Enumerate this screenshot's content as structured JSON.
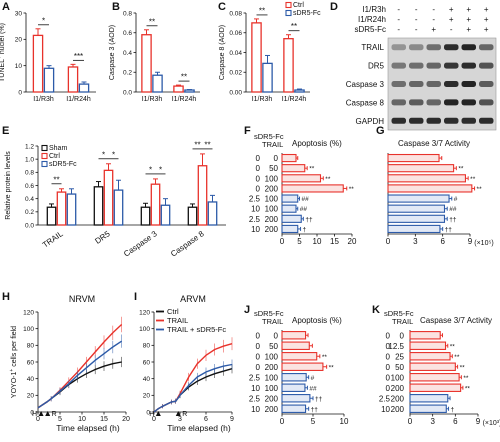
{
  "colors": {
    "sham": "#111111",
    "ctrl": "#e8322b",
    "sdr5": "#2c5aa8",
    "ctrl_fill": "#fbe3e1",
    "sdr5_fill": "#e2e9f6",
    "blot_bg": "#d6d6d6",
    "band": "#1a1a1a"
  },
  "chart_data": [
    {
      "id": "A",
      "type": "bar",
      "panel_label": "A",
      "ylabel": "TUNEL",
      "ylabel_sup": "+",
      "ylabel_rest": " nuclei (%)",
      "categories": [
        "I1/R3h",
        "I1/R24h"
      ],
      "ylim": [
        0,
        30
      ],
      "yticks": [
        "0",
        "10",
        "20",
        "30"
      ],
      "series": [
        {
          "name": "Ctrl",
          "values": [
            21.5,
            9.5
          ],
          "err": [
            2.5,
            1
          ]
        },
        {
          "name": "sDR5-Fc",
          "values": [
            9,
            3
          ],
          "err": [
            1,
            0.8
          ]
        }
      ],
      "sig": [
        "*",
        "***"
      ]
    },
    {
      "id": "B",
      "type": "bar",
      "panel_label": "B",
      "ylabel": "Caspase 3 (AOD)",
      "categories": [
        "I1/R3h",
        "I1/R24h"
      ],
      "ylim": [
        0,
        0.8
      ],
      "yticks": [
        "0.0",
        "0.2",
        "0.4",
        "0.6",
        "0.8"
      ],
      "series": [
        {
          "name": "Ctrl",
          "values": [
            0.58,
            0.06
          ],
          "err": [
            0.05,
            0.01
          ]
        },
        {
          "name": "sDR5-Fc",
          "values": [
            0.17,
            0.02
          ],
          "err": [
            0.03,
            0.005
          ]
        }
      ],
      "sig": [
        "**",
        "**"
      ]
    },
    {
      "id": "C",
      "type": "bar",
      "panel_label": "C",
      "ylabel": "Caspase 8 (AOD)",
      "categories": [
        "I1/R3h",
        "I1/R24h"
      ],
      "ylim": [
        0,
        0.08
      ],
      "yticks": [
        "0.00",
        "0.02",
        "0.04",
        "0.06",
        "0.08"
      ],
      "series": [
        {
          "name": "Ctrl",
          "values": [
            0.07,
            0.054
          ],
          "err": [
            0.004,
            0.004
          ]
        },
        {
          "name": "sDR5-Fc",
          "values": [
            0.029,
            0.002
          ],
          "err": [
            0.008,
            0.001
          ]
        }
      ],
      "sig": [
        "**",
        "**"
      ],
      "legend": [
        "Ctrl",
        "sDR5-Fc"
      ]
    },
    {
      "id": "E",
      "type": "bar",
      "panel_label": "E",
      "ylabel": "Relative protein levels",
      "categories": [
        "TRAIL",
        "DR5",
        "Caspase 3",
        "Caspase 8"
      ],
      "ylim": [
        0,
        1.2
      ],
      "yticks": [
        "0.0",
        "0.2",
        "0.4",
        "0.6",
        "0.8",
        "1.0",
        "1.2"
      ],
      "series": [
        {
          "name": "Sham",
          "values": [
            0.27,
            0.58,
            0.27,
            0.27
          ],
          "err": [
            0.05,
            0.08,
            0.06,
            0.05
          ]
        },
        {
          "name": "Ctrl",
          "values": [
            0.5,
            0.83,
            0.62,
            0.9
          ],
          "err": [
            0.05,
            0.1,
            0.08,
            0.18
          ]
        },
        {
          "name": "sDR5-Fc",
          "values": [
            0.47,
            0.53,
            0.3,
            0.35
          ],
          "err": [
            0.08,
            0.15,
            0.1,
            0.1
          ]
        }
      ],
      "sig": [
        {
          "cat": 0,
          "a": 0,
          "b": 1,
          "t": "**"
        },
        {
          "cat": 1,
          "a": 0,
          "b": 1,
          "t": "*"
        },
        {
          "cat": 1,
          "a": 1,
          "b": 2,
          "t": "*"
        },
        {
          "cat": 2,
          "a": 0,
          "b": 1,
          "t": "*"
        },
        {
          "cat": 2,
          "a": 1,
          "b": 2,
          "t": "*"
        },
        {
          "cat": 3,
          "a": 0,
          "b": 1,
          "t": "**"
        },
        {
          "cat": 3,
          "a": 1,
          "b": 2,
          "t": "**"
        }
      ],
      "legend": [
        "Sham",
        "Ctrl",
        "sDR5-Fc"
      ]
    },
    {
      "id": "F",
      "type": "hbar",
      "panel_label": "F",
      "title": "Apoptosis (%)",
      "col_headers": [
        "sDR5-Fc",
        "TRAIL"
      ],
      "rows": [
        {
          "sdr5": "0",
          "trail": "0",
          "value": 4,
          "err": 0.5,
          "group": "ctrl",
          "sig": ""
        },
        {
          "sdr5": "0",
          "trail": "50",
          "value": 6.5,
          "err": 0.7,
          "group": "ctrl",
          "sig": "**"
        },
        {
          "sdr5": "0",
          "trail": "100",
          "value": 11,
          "err": 0.8,
          "group": "ctrl",
          "sig": "**"
        },
        {
          "sdr5": "0",
          "trail": "200",
          "value": 17.5,
          "err": 1,
          "group": "ctrl",
          "sig": "**"
        },
        {
          "sdr5": "2.5",
          "trail": "100",
          "value": 4.5,
          "err": 0.5,
          "group": "sdr5",
          "sig": "##"
        },
        {
          "sdr5": "10",
          "trail": "100",
          "value": 4,
          "err": 0.5,
          "group": "sdr5",
          "sig": "##"
        },
        {
          "sdr5": "2.5",
          "trail": "200",
          "value": 5.5,
          "err": 0.6,
          "group": "sdr5",
          "sig": "††"
        },
        {
          "sdr5": "10",
          "trail": "200",
          "value": 4.5,
          "err": 0.8,
          "group": "sdr5",
          "sig": "†"
        }
      ],
      "xlim": [
        0,
        20
      ],
      "xticks": [
        "0",
        "5",
        "10",
        "15",
        "20"
      ]
    },
    {
      "id": "G",
      "type": "hbar",
      "panel_label": "G",
      "title": "Caspase 3/7 Activity",
      "rows": [
        {
          "value": 5.6,
          "err": 0.3,
          "group": "ctrl",
          "sig": ""
        },
        {
          "value": 7.2,
          "err": 0.3,
          "group": "ctrl",
          "sig": "**"
        },
        {
          "value": 8.5,
          "err": 0.3,
          "group": "ctrl",
          "sig": "**"
        },
        {
          "value": 9.2,
          "err": 0.3,
          "group": "ctrl",
          "sig": "**"
        },
        {
          "value": 6.7,
          "err": 0.3,
          "group": "sdr5",
          "sig": "#"
        },
        {
          "value": 6.2,
          "err": 0.3,
          "group": "sdr5",
          "sig": "##"
        },
        {
          "value": 6.2,
          "err": 0.3,
          "group": "sdr5",
          "sig": "††"
        },
        {
          "value": 5.7,
          "err": 0.3,
          "group": "sdr5",
          "sig": "††"
        }
      ],
      "xlim": [
        0,
        9
      ],
      "xticks": [
        "0",
        "3",
        "6",
        "9"
      ],
      "xunit": "(×10⁵)"
    },
    {
      "id": "H",
      "type": "line",
      "panel_label": "H",
      "title": "NRVM",
      "ylabel": "YOYO-1",
      "ylabel_sup": "+",
      "ylabel_rest": " cells per field",
      "xlabel": "Time elapsed (h)",
      "xlim": [
        0,
        20
      ],
      "ylim": [
        0,
        120
      ],
      "xticks": [
        "0",
        "5",
        "10",
        "15",
        "20"
      ],
      "yticks": [
        "0",
        "20",
        "40",
        "60",
        "80",
        "100",
        "120"
      ],
      "marker_labels": [
        "H",
        "R"
      ],
      "series": [
        {
          "name": "Ctrl",
          "color_key": "sham",
          "x": [
            0,
            2,
            3,
            5,
            7,
            9,
            11,
            13,
            15,
            17,
            19
          ],
          "y": [
            5,
            12,
            16,
            24,
            33,
            40,
            46,
            51,
            55,
            58,
            60
          ]
        },
        {
          "name": "TRAIL",
          "color_key": "ctrl",
          "x": [
            0,
            2,
            3,
            5,
            7,
            9,
            11,
            13,
            15,
            17,
            19
          ],
          "y": [
            5,
            12,
            16,
            26,
            37,
            48,
            60,
            72,
            84,
            95,
            105
          ]
        },
        {
          "name": "TRAIL + sDR5-Fc",
          "color_key": "sdr5",
          "x": [
            0,
            2,
            3,
            5,
            7,
            9,
            11,
            13,
            15,
            17,
            19
          ],
          "y": [
            5,
            12,
            16,
            25,
            34,
            44,
            53,
            62,
            70,
            78,
            85
          ]
        }
      ]
    },
    {
      "id": "I",
      "type": "line",
      "panel_label": "I",
      "title": "ARVM",
      "xlabel": "Time elapsed (h)",
      "xlim": [
        0,
        9
      ],
      "ylim": [
        0,
        120
      ],
      "xticks": [
        "0",
        "3",
        "6",
        "9"
      ],
      "yticks": [
        "0",
        "20",
        "40",
        "60",
        "80",
        "100",
        "120"
      ],
      "marker_labels": [
        "H",
        "R"
      ],
      "legend": [
        "Ctrl",
        "TRAIL",
        "TRAIL + sDR5-Fc"
      ],
      "series": [
        {
          "name": "Ctrl",
          "color_key": "sham",
          "x": [
            0,
            0.5,
            1,
            2,
            2.5,
            3,
            4,
            5,
            6,
            7,
            8,
            9
          ],
          "y": [
            0,
            4,
            7,
            12,
            13,
            20,
            30,
            37,
            42,
            46,
            49,
            52
          ]
        },
        {
          "name": "TRAIL",
          "color_key": "ctrl",
          "x": [
            0,
            0.5,
            1,
            2,
            2.5,
            3,
            4,
            5,
            6,
            7,
            8,
            9
          ],
          "y": [
            0,
            4,
            7,
            12,
            13,
            22,
            42,
            58,
            68,
            75,
            79,
            82
          ]
        },
        {
          "name": "TRAIL + sDR5-Fc",
          "color_key": "sdr5",
          "x": [
            0,
            0.5,
            1,
            2,
            2.5,
            3,
            4,
            5,
            6,
            7,
            8,
            9
          ],
          "y": [
            0,
            4,
            7,
            12,
            13,
            20,
            32,
            42,
            48,
            52,
            55,
            57
          ]
        }
      ]
    },
    {
      "id": "J",
      "type": "hbar",
      "panel_label": "J",
      "title": "Apoptosis (%)",
      "col_headers": [
        "sDR5-Fc",
        "TRAIL"
      ],
      "rows": [
        {
          "sdr5": "0",
          "trail": "0",
          "value": 3.8,
          "err": 0.4,
          "group": "ctrl",
          "sig": ""
        },
        {
          "sdr5": "0",
          "trail": "50",
          "value": 4.4,
          "err": 0.5,
          "group": "ctrl",
          "sig": ""
        },
        {
          "sdr5": "0",
          "trail": "100",
          "value": 5.6,
          "err": 0.5,
          "group": "ctrl",
          "sig": "**"
        },
        {
          "sdr5": "0",
          "trail": "200",
          "value": 6.6,
          "err": 0.6,
          "group": "ctrl",
          "sig": "**"
        },
        {
          "sdr5": "2.5",
          "trail": "100",
          "value": 3.9,
          "err": 0.4,
          "group": "sdr5",
          "sig": "#"
        },
        {
          "sdr5": "10",
          "trail": "100",
          "value": 3.7,
          "err": 0.4,
          "group": "sdr5",
          "sig": "##"
        },
        {
          "sdr5": "2.5",
          "trail": "200",
          "value": 4.5,
          "err": 0.5,
          "group": "sdr5",
          "sig": "††"
        },
        {
          "sdr5": "10",
          "trail": "200",
          "value": 3.8,
          "err": 0.5,
          "group": "sdr5",
          "sig": "††"
        }
      ],
      "xlim": [
        0,
        10
      ],
      "xticks": [
        "0",
        "5",
        "10"
      ]
    },
    {
      "id": "K",
      "type": "hbar",
      "panel_label": "K",
      "title": "Caspase 3/7 Activity",
      "col_headers": [
        "sDR5-Fc",
        "TRAIL"
      ],
      "rows": [
        {
          "sdr5": "0",
          "trail": "0",
          "value": 4,
          "err": 0.3,
          "group": "ctrl",
          "sig": ""
        },
        {
          "sdr5": "0",
          "trail": "12.5",
          "value": 4.7,
          "err": 0.3,
          "group": "ctrl",
          "sig": "**"
        },
        {
          "sdr5": "0",
          "trail": "25",
          "value": 5.3,
          "err": 0.3,
          "group": "ctrl",
          "sig": "**"
        },
        {
          "sdr5": "0",
          "trail": "50",
          "value": 6,
          "err": 0.3,
          "group": "ctrl",
          "sig": "**"
        },
        {
          "sdr5": "0",
          "trail": "100",
          "value": 6.5,
          "err": 0.3,
          "group": "ctrl",
          "sig": "**"
        },
        {
          "sdr5": "0",
          "trail": "200",
          "value": 6.7,
          "err": 0.3,
          "group": "ctrl",
          "sig": "**"
        },
        {
          "sdr5": "2.5",
          "trail": "200",
          "value": 5,
          "err": 0.3,
          "group": "sdr5",
          "sig": ""
        },
        {
          "sdr5": "10",
          "trail": "200",
          "value": 4.8,
          "err": 0.3,
          "group": "sdr5",
          "sig": "†"
        }
      ],
      "xlim": [
        0,
        9
      ],
      "xticks": [
        "0",
        "3",
        "6",
        "9"
      ],
      "xunit": "(×10³)"
    }
  ],
  "blot": {
    "panel_label": "D",
    "headers": [
      {
        "name": "I1/R3h",
        "signs": [
          "-",
          "-",
          "-",
          "+",
          "+",
          "+"
        ]
      },
      {
        "name": "I1/R24h",
        "signs": [
          "-",
          "-",
          "-",
          "+",
          "+",
          "+"
        ]
      },
      {
        "name": "sDR5-Fc",
        "signs": [
          "-",
          "-",
          "+",
          "-",
          "+",
          "+"
        ]
      }
    ],
    "bands": [
      "TRAIL",
      "DR5",
      "Caspase 3",
      "Caspase 8",
      "GAPDH"
    ]
  }
}
